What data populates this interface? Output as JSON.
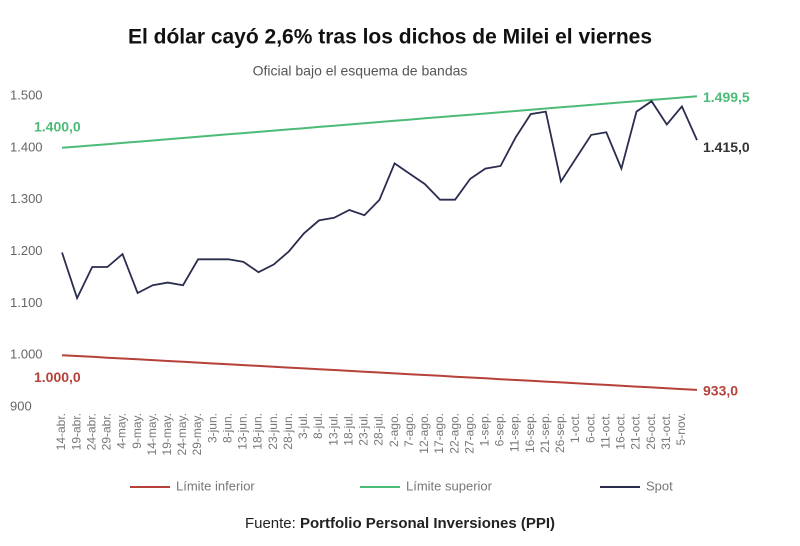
{
  "chart_data": {
    "type": "line",
    "title": "El dólar cayó 2,6% tras los dichos de Milei el viernes",
    "subtitle": "Oficial bajo el esquema de bandas",
    "source_label": "Fuente:",
    "source": "Portfolio Personal Inversiones (PPI)",
    "categories": [
      "14-abr.",
      "19-abr.",
      "24-abr.",
      "29-abr.",
      "4-may.",
      "9-may.",
      "14-may.",
      "19-may.",
      "24-may.",
      "29-may.",
      "3-jun.",
      "8-jun.",
      "13-jun.",
      "18-jun.",
      "23-jun.",
      "28-jun.",
      "3-jul.",
      "8-jul.",
      "13-jul.",
      "18-jul.",
      "23-jul.",
      "28-jul.",
      "2-ago.",
      "7-ago.",
      "12-ago.",
      "17-ago.",
      "22-ago.",
      "27-ago.",
      "1-sep.",
      "6-sep.",
      "11-sep.",
      "16-sep.",
      "21-sep.",
      "26-sep.",
      "1-oct.",
      "6-oct.",
      "11-oct.",
      "16-oct.",
      "21-oct.",
      "26-oct.",
      "31-oct.",
      "5-nov.",
      null
    ],
    "series": [
      {
        "name": "Límite inferior",
        "color": "#b5413a",
        "values": [
          1000,
          998.4,
          996.8,
          995.2,
          993.6,
          992.0,
          990.4,
          988.8,
          987.2,
          985.6,
          984.0,
          982.5,
          980.9,
          979.3,
          977.7,
          976.1,
          974.5,
          972.9,
          971.3,
          969.7,
          968.1,
          966.5,
          964.9,
          963.3,
          961.7,
          960.1,
          958.5,
          956.9,
          955.3,
          953.7,
          952.1,
          950.6,
          949.0,
          947.4,
          945.8,
          944.2,
          942.6,
          941.0,
          939.4,
          937.8,
          936.2,
          934.6,
          933
        ],
        "value_labels": [
          "1.000,0",
          null,
          null,
          null,
          null,
          null,
          null,
          null,
          null,
          null,
          null,
          null,
          null,
          null,
          null,
          null,
          null,
          null,
          null,
          null,
          null,
          null,
          null,
          null,
          null,
          null,
          null,
          null,
          null,
          null,
          null,
          null,
          null,
          null,
          null,
          null,
          null,
          null,
          null,
          null,
          null,
          null,
          "933,0"
        ]
      },
      {
        "name": "Límite superior",
        "color": "#4dbb78",
        "values": [
          1400,
          1402.4,
          1404.7,
          1407.1,
          1409.5,
          1411.8,
          1414.2,
          1416.6,
          1419.0,
          1421.3,
          1423.7,
          1426.1,
          1428.4,
          1430.8,
          1433.2,
          1435.5,
          1437.9,
          1440.3,
          1442.6,
          1445.0,
          1447.4,
          1449.8,
          1452.1,
          1454.5,
          1456.9,
          1459.2,
          1461.6,
          1464.0,
          1466.3,
          1468.7,
          1471.1,
          1473.4,
          1475.8,
          1478.2,
          1480.6,
          1482.9,
          1485.3,
          1487.7,
          1490.0,
          1492.4,
          1494.8,
          1497.1,
          1499.5
        ],
        "value_labels": [
          "1.400,0",
          null,
          null,
          null,
          null,
          null,
          null,
          null,
          null,
          null,
          null,
          null,
          null,
          null,
          null,
          null,
          null,
          null,
          null,
          null,
          null,
          null,
          null,
          null,
          null,
          null,
          null,
          null,
          null,
          null,
          null,
          null,
          null,
          null,
          null,
          null,
          null,
          null,
          null,
          null,
          null,
          null,
          "1.499,5"
        ]
      },
      {
        "name": "Spot",
        "color": "#2b2d4f",
        "values": [
          1198,
          1110,
          1170,
          1170,
          1195,
          1120,
          1135,
          1140,
          1135,
          1185,
          1185,
          1185,
          1180,
          1160,
          1175,
          1200,
          1235,
          1260,
          1265,
          1280,
          1270,
          1300,
          1370,
          1350,
          1330,
          1300,
          1300,
          1340,
          1360,
          1365,
          1420,
          1465,
          1470,
          1335,
          1380,
          1425,
          1430,
          1360,
          1470,
          1490,
          1445,
          1480,
          1415
        ],
        "value_labels": [
          null,
          null,
          null,
          null,
          null,
          null,
          null,
          null,
          null,
          null,
          null,
          null,
          null,
          null,
          null,
          null,
          null,
          null,
          null,
          null,
          null,
          null,
          null,
          null,
          null,
          null,
          null,
          null,
          null,
          null,
          null,
          null,
          null,
          null,
          null,
          null,
          null,
          null,
          null,
          null,
          null,
          null,
          "1.415,0"
        ]
      }
    ],
    "ylim": [
      900,
      1500
    ],
    "yticks": [
      900,
      {
        "value": 1000,
        "label": "1.000"
      },
      {
        "value": 1100,
        "label": "1.100"
      },
      {
        "value": 1200,
        "label": "1.200"
      },
      {
        "value": 1300,
        "label": "1.300"
      },
      {
        "value": 1400,
        "label": "1.400"
      },
      {
        "value": 1500,
        "label": "1.500"
      }
    ],
    "grid": false,
    "legend": "bottom"
  }
}
